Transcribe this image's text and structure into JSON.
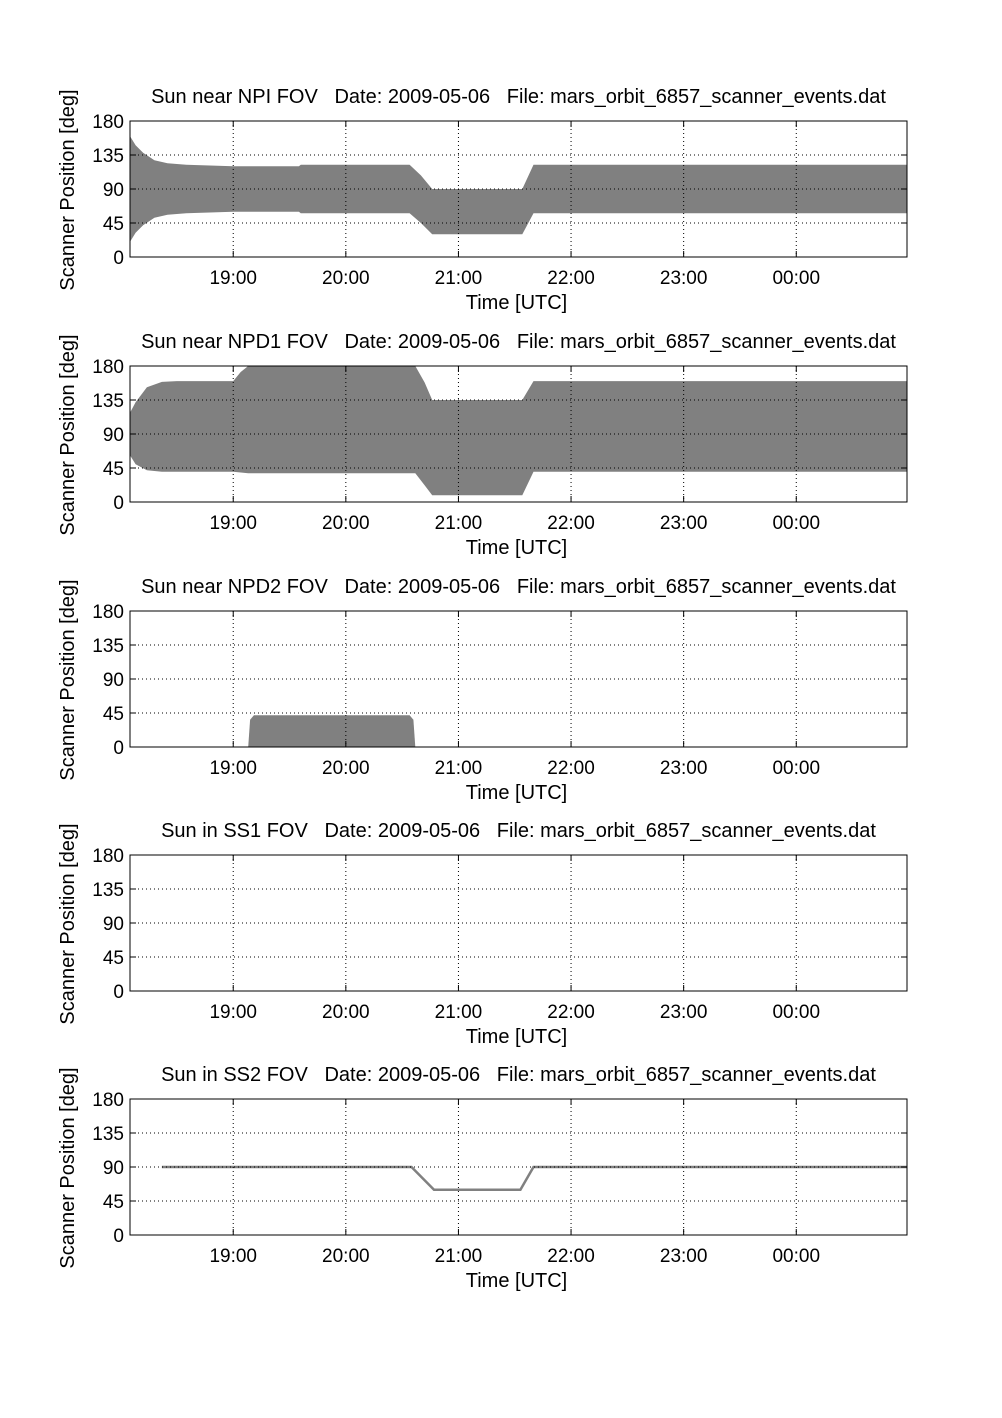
{
  "chart_data": [
    {
      "type": "area",
      "title": "Sun near NPI FOV   Date: 2009-05-06   File: mars_orbit_6857_scanner_events.dat",
      "xlabel": "Time [UTC]",
      "ylabel": "Scanner Position [deg]",
      "xlim": [
        "18:05",
        "00:59"
      ],
      "ylim": [
        0,
        180
      ],
      "xticks": [
        "19:00",
        "20:00",
        "21:00",
        "22:00",
        "23:00",
        "00:00"
      ],
      "yticks": [
        0,
        45,
        90,
        135,
        180
      ],
      "grid": true,
      "fill_color": "#808080",
      "bands": [
        [
          {
            "t": "18:05",
            "lo": 20,
            "hi": 160
          },
          {
            "t": "18:08",
            "lo": 32,
            "hi": 148
          },
          {
            "t": "18:12",
            "lo": 42,
            "hi": 138
          },
          {
            "t": "18:18",
            "lo": 52,
            "hi": 128
          },
          {
            "t": "18:25",
            "lo": 56,
            "hi": 124
          },
          {
            "t": "18:35",
            "lo": 58,
            "hi": 122
          },
          {
            "t": "19:00",
            "lo": 60,
            "hi": 120
          },
          {
            "t": "19:35",
            "lo": 60,
            "hi": 120
          },
          {
            "t": "19:36",
            "lo": 58,
            "hi": 122
          },
          {
            "t": "20:34",
            "lo": 58,
            "hi": 122
          },
          {
            "t": "20:40",
            "lo": 45,
            "hi": 108
          },
          {
            "t": "20:46",
            "lo": 30,
            "hi": 90
          },
          {
            "t": "21:34",
            "lo": 30,
            "hi": 90
          },
          {
            "t": "21:40",
            "lo": 58,
            "hi": 122
          },
          {
            "t": "00:59",
            "lo": 58,
            "hi": 122
          }
        ]
      ]
    },
    {
      "type": "area",
      "title": "Sun near NPD1 FOV   Date: 2009-05-06   File: mars_orbit_6857_scanner_events.dat",
      "xlabel": "Time [UTC]",
      "ylabel": "Scanner Position [deg]",
      "xlim": [
        "18:05",
        "00:59"
      ],
      "ylim": [
        0,
        180
      ],
      "xticks": [
        "19:00",
        "20:00",
        "21:00",
        "22:00",
        "23:00",
        "00:00"
      ],
      "yticks": [
        0,
        45,
        90,
        135,
        180
      ],
      "grid": true,
      "fill_color": "#808080",
      "bands": [
        [
          {
            "t": "18:05",
            "lo": 62,
            "hi": 118
          },
          {
            "t": "18:08",
            "lo": 50,
            "hi": 132
          },
          {
            "t": "18:14",
            "lo": 42,
            "hi": 152
          },
          {
            "t": "18:22",
            "lo": 40,
            "hi": 159
          },
          {
            "t": "18:30",
            "lo": 40,
            "hi": 160
          },
          {
            "t": "19:00",
            "lo": 40,
            "hi": 160
          },
          {
            "t": "19:04",
            "lo": 39,
            "hi": 172
          },
          {
            "t": "19:08",
            "lo": 38,
            "hi": 180
          },
          {
            "t": "20:37",
            "lo": 38,
            "hi": 180
          },
          {
            "t": "20:42",
            "lo": 22,
            "hi": 158
          },
          {
            "t": "20:46",
            "lo": 9,
            "hi": 135
          },
          {
            "t": "21:34",
            "lo": 9,
            "hi": 135
          },
          {
            "t": "21:40",
            "lo": 40,
            "hi": 160
          },
          {
            "t": "00:59",
            "lo": 40,
            "hi": 160
          }
        ]
      ]
    },
    {
      "type": "area",
      "title": "Sun near NPD2 FOV   Date: 2009-05-06   File: mars_orbit_6857_scanner_events.dat",
      "xlabel": "Time [UTC]",
      "ylabel": "Scanner Position [deg]",
      "xlim": [
        "18:05",
        "00:59"
      ],
      "ylim": [
        0,
        180
      ],
      "xticks": [
        "19:00",
        "20:00",
        "21:00",
        "22:00",
        "23:00",
        "00:00"
      ],
      "yticks": [
        0,
        45,
        90,
        135,
        180
      ],
      "grid": true,
      "fill_color": "#808080",
      "bands": [
        [
          {
            "t": "19:08",
            "lo": 0,
            "hi": 0
          },
          {
            "t": "19:09",
            "lo": 0,
            "hi": 36
          },
          {
            "t": "19:11",
            "lo": 0,
            "hi": 42
          },
          {
            "t": "20:34",
            "lo": 0,
            "hi": 42
          },
          {
            "t": "20:36",
            "lo": 0,
            "hi": 36
          },
          {
            "t": "20:37",
            "lo": 0,
            "hi": 0
          }
        ]
      ]
    },
    {
      "type": "area",
      "title": "Sun in SS1 FOV   Date: 2009-05-06   File: mars_orbit_6857_scanner_events.dat",
      "xlabel": "Time [UTC]",
      "ylabel": "Scanner Position [deg]",
      "xlim": [
        "18:05",
        "00:59"
      ],
      "ylim": [
        0,
        180
      ],
      "xticks": [
        "19:00",
        "20:00",
        "21:00",
        "22:00",
        "23:00",
        "00:00"
      ],
      "yticks": [
        0,
        45,
        90,
        135,
        180
      ],
      "grid": true,
      "fill_color": "#808080",
      "bands": []
    },
    {
      "type": "line",
      "title": "Sun in SS2 FOV   Date: 2009-05-06   File: mars_orbit_6857_scanner_events.dat",
      "xlabel": "Time [UTC]",
      "ylabel": "Scanner Position [deg]",
      "xlim": [
        "18:05",
        "00:59"
      ],
      "ylim": [
        0,
        180
      ],
      "xticks": [
        "19:00",
        "20:00",
        "21:00",
        "22:00",
        "23:00",
        "00:00"
      ],
      "yticks": [
        0,
        45,
        90,
        135,
        180
      ],
      "grid": true,
      "line_color": "#808080",
      "points": [
        {
          "t": "18:22",
          "y": 90
        },
        {
          "t": "20:35",
          "y": 90
        },
        {
          "t": "20:47",
          "y": 60
        },
        {
          "t": "21:33",
          "y": 60
        },
        {
          "t": "21:40",
          "y": 90
        },
        {
          "t": "00:59",
          "y": 90
        }
      ]
    }
  ]
}
